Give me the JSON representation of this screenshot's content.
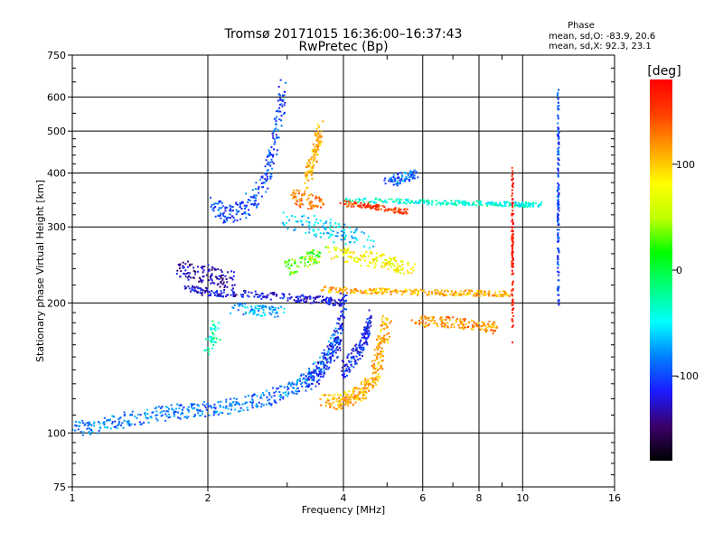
{
  "header": {
    "title_line1": "Tromsø 20171015 16:36:00–16:37:43",
    "title_line2": "RwPretec (Bp)",
    "phase_heading": "Phase",
    "phase_o": "mean, sd,O: -83.9, 20.6",
    "phase_x": "mean, sd,X:  92.3, 23.1"
  },
  "chart_data": {
    "type": "scatter",
    "xlabel": "Frequency [MHz]",
    "ylabel": "Stationary phase Virtual Height [km]",
    "x_scale": "log",
    "y_scale": "log",
    "xlim": [
      1,
      16
    ],
    "ylim": [
      75,
      750
    ],
    "x_ticks": [
      1,
      2,
      4,
      6,
      8,
      10,
      16
    ],
    "x_minor_ticks": [
      3,
      5,
      7,
      9
    ],
    "y_ticks": [
      75,
      100,
      200,
      300,
      400,
      500,
      600,
      750
    ],
    "grid": true,
    "colorbar": {
      "label": "[deg]",
      "min": -180,
      "max": 180,
      "ticks": [
        100,
        0,
        -100
      ],
      "colors": [
        "#000000",
        "#3b006b",
        "#1a1aff",
        "#0080ff",
        "#00ffff",
        "#00ff80",
        "#00ff00",
        "#c0ff00",
        "#ffff00",
        "#ffa000",
        "#ff4000",
        "#ff0000"
      ]
    },
    "traces": [
      {
        "x": [
          1.0,
          1.15,
          1.3,
          1.5,
          1.7,
          1.9,
          2.1,
          2.4,
          2.7,
          3.0,
          3.3,
          3.6,
          3.9
        ],
        "y": [
          102,
          104,
          107,
          110,
          112,
          113,
          114,
          117,
          120,
          125,
          132,
          145,
          170
        ],
        "phase": -85,
        "spread": [
          0.02,
          0.04
        ]
      },
      {
        "x": [
          3.3,
          3.5,
          3.7,
          3.85,
          3.95,
          4.0
        ],
        "y": [
          130,
          138,
          148,
          160,
          178,
          205
        ],
        "phase": -110,
        "spread": [
          0.02,
          0.05
        ]
      },
      {
        "x": [
          3.6,
          3.9,
          4.1,
          4.3,
          4.5,
          4.7,
          4.8,
          4.9,
          5.0
        ],
        "y": [
          118,
          118,
          120,
          123,
          128,
          135,
          150,
          165,
          185
        ],
        "phase": 110,
        "spread": [
          0.025,
          0.04
        ]
      },
      {
        "x": [
          4.0,
          4.2,
          4.4,
          4.5,
          4.6
        ],
        "y": [
          140,
          148,
          160,
          170,
          185
        ],
        "phase": -110,
        "spread": [
          0.01,
          0.05
        ]
      },
      {
        "x": [
          2.05,
          2.2,
          2.4,
          2.6,
          2.75,
          2.85,
          2.95
        ],
        "y": [
          335,
          320,
          330,
          360,
          420,
          520,
          630
        ],
        "phase": -100,
        "spread": [
          0.02,
          0.05
        ]
      },
      {
        "x": [
          1.8,
          2.0,
          2.3,
          2.7,
          3.2,
          3.6,
          3.9
        ],
        "y": [
          215,
          212,
          210,
          208,
          205,
          203,
          200
        ],
        "phase": -120,
        "spread": [
          0.02,
          0.02
        ]
      },
      {
        "x": [
          1.7,
          1.9,
          2.1,
          2.3
        ],
        "y": [
          240,
          235,
          230,
          225
        ],
        "phase": -130,
        "spread": [
          0.02,
          0.05
        ]
      },
      {
        "x": [
          3.1,
          3.3,
          3.6
        ],
        "y": [
          355,
          345,
          340
        ],
        "phase": 130,
        "spread": [
          0.02,
          0.04
        ]
      },
      {
        "x": [
          3.3,
          3.4,
          3.5,
          3.55
        ],
        "y": [
          380,
          420,
          460,
          500
        ],
        "phase": 110,
        "spread": [
          0.015,
          0.06
        ]
      },
      {
        "x": [
          4.0,
          5.0,
          6.0,
          7.0,
          8.0,
          9.0,
          10.0,
          11.0
        ],
        "y": [
          345,
          345,
          342,
          341,
          340,
          339,
          338,
          338
        ],
        "phase": -40,
        "spread": [
          0.01,
          0.012
        ]
      },
      {
        "x": [
          4.0,
          4.5,
          5.0,
          5.5
        ],
        "y": [
          340,
          336,
          330,
          325
        ],
        "phase": 150,
        "spread": [
          0.02,
          0.015
        ]
      },
      {
        "x": [
          3.6,
          4.2,
          4.8,
          5.5,
          6.5,
          7.5,
          8.5,
          9.5
        ],
        "y": [
          215,
          214,
          213,
          212,
          211,
          211,
          210,
          210
        ],
        "phase": 110,
        "spread": [
          0.02,
          0.015
        ]
      },
      {
        "x": [
          3.8,
          4.3,
          4.8,
          5.2,
          5.6
        ],
        "y": [
          260,
          255,
          250,
          245,
          240
        ],
        "phase": 80,
        "spread": [
          0.04,
          0.04
        ]
      },
      {
        "x": [
          3.0,
          3.3,
          3.6
        ],
        "y": [
          240,
          250,
          260
        ],
        "phase": 30,
        "spread": [
          0.02,
          0.04
        ]
      },
      {
        "x": [
          5.8,
          6.5,
          7.2,
          8.0,
          8.8
        ],
        "y": [
          180,
          182,
          180,
          178,
          175
        ],
        "phase": 120,
        "spread": [
          0.03,
          0.03
        ]
      },
      {
        "x": [
          5.0,
          5.4,
          5.8
        ],
        "y": [
          380,
          390,
          395
        ],
        "phase": -90,
        "spread": [
          0.02,
          0.03
        ]
      },
      {
        "x": [
          12.0,
          12.0,
          12.0,
          12.0,
          12.0
        ],
        "y": [
          200,
          280,
          350,
          450,
          600
        ],
        "phase": -100,
        "spread": [
          0.004,
          0.12
        ]
      },
      {
        "x": [
          9.5,
          9.5,
          9.5,
          9.5
        ],
        "y": [
          180,
          240,
          300,
          380
        ],
        "phase": 170,
        "spread": [
          0.004,
          0.12
        ]
      },
      {
        "x": [
          2.3,
          2.6,
          2.9
        ],
        "y": [
          195,
          192,
          190
        ],
        "phase": -70,
        "spread": [
          0.03,
          0.03
        ]
      },
      {
        "x": [
          2.0,
          2.1
        ],
        "y": [
          160,
          175
        ],
        "phase": -30,
        "spread": [
          0.02,
          0.06
        ]
      },
      {
        "x": [
          3.0,
          3.5,
          4.0,
          4.5
        ],
        "y": [
          310,
          300,
          290,
          280
        ],
        "phase": -60,
        "spread": [
          0.05,
          0.05
        ]
      }
    ]
  }
}
